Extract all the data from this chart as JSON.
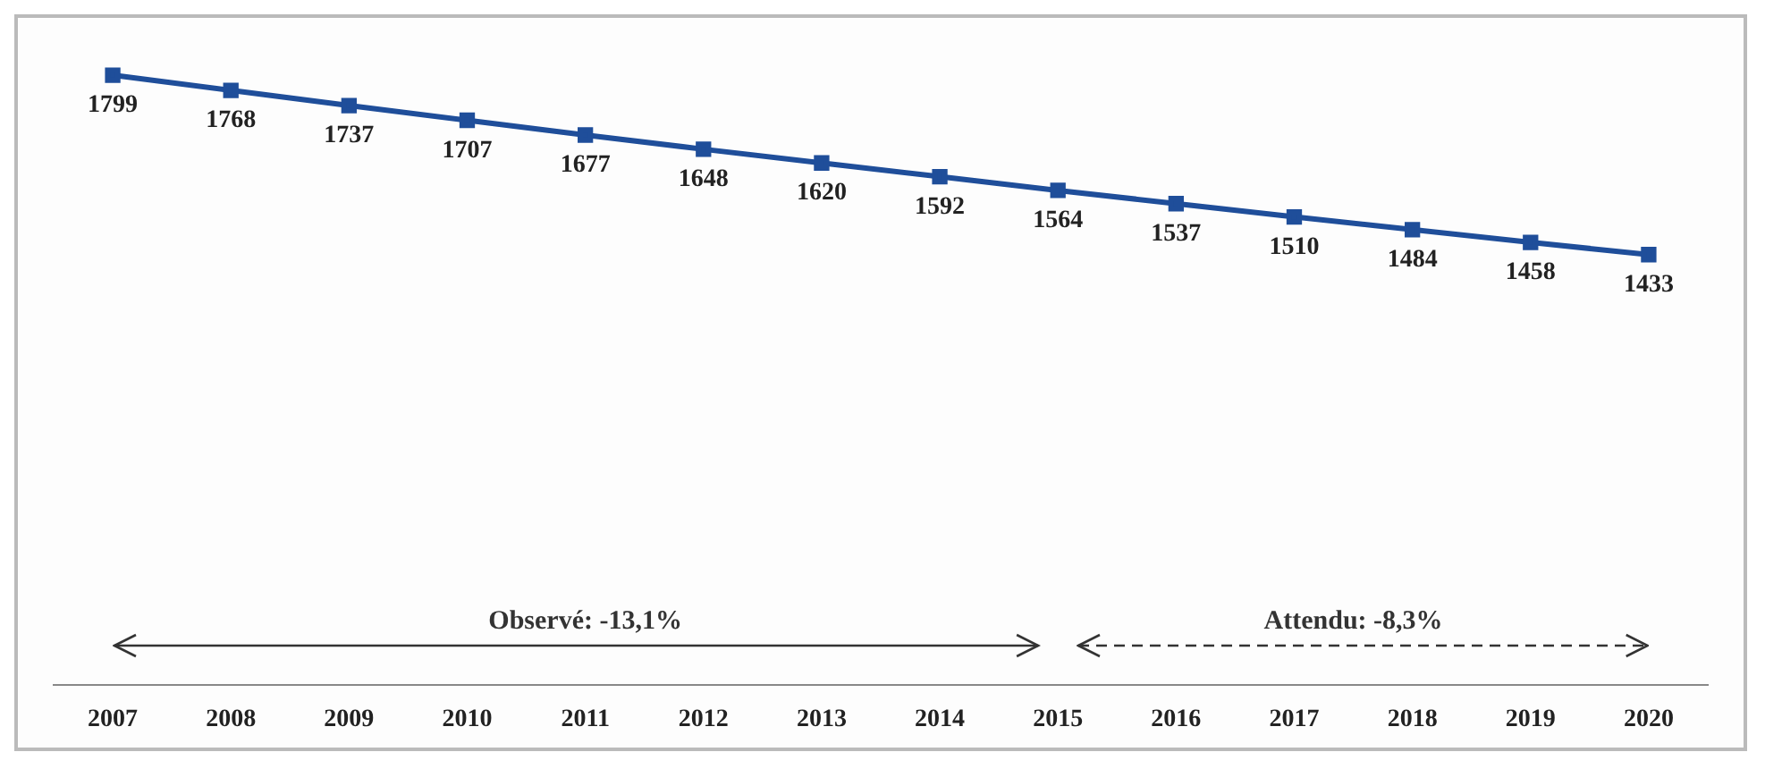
{
  "chart_data": {
    "type": "line",
    "categories": [
      "2007",
      "2008",
      "2009",
      "2010",
      "2011",
      "2012",
      "2013",
      "2014",
      "2015",
      "2016",
      "2017",
      "2018",
      "2019",
      "2020"
    ],
    "series": [
      {
        "color": "#1f4e9a",
        "values": [
          1799,
          1768,
          1737,
          1707,
          1677,
          1648,
          1620,
          1592,
          1564,
          1537,
          1510,
          1484,
          1458,
          1433
        ]
      }
    ],
    "data_labels": true,
    "marker": "square",
    "line_style": "solid",
    "grid": false,
    "legend": false,
    "tick_labels": "x",
    "annotations": [
      "Observé: -13,1%",
      "Attendu: -8,3%"
    ]
  }
}
